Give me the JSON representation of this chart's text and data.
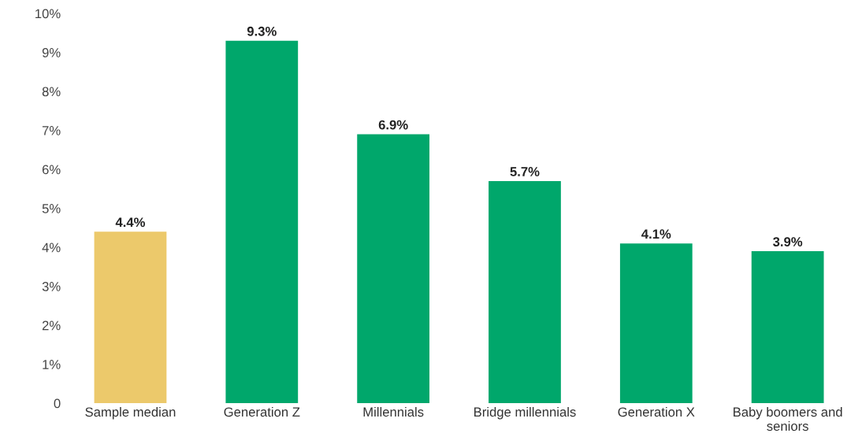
{
  "chart_data": {
    "type": "bar",
    "categories": [
      "Sample median",
      "Generation Z",
      "Millennials",
      "Bridge millennials",
      "Generation X",
      "Baby boomers and\nseniors"
    ],
    "values": [
      4.4,
      9.3,
      6.9,
      5.7,
      4.1,
      3.9
    ],
    "colors": [
      "#ecc96b",
      "#00a76b",
      "#00a76b",
      "#00a76b",
      "#00a76b",
      "#00a76b"
    ],
    "value_labels": [
      "4.4%",
      "9.3%",
      "6.9%",
      "5.7%",
      "4.1%",
      "3.9%"
    ],
    "ylim": [
      0,
      10
    ],
    "yticks": [
      {
        "value": 0,
        "label": "0"
      },
      {
        "value": 1,
        "label": "1%"
      },
      {
        "value": 2,
        "label": "2%"
      },
      {
        "value": 3,
        "label": "3%"
      },
      {
        "value": 4,
        "label": "4%"
      },
      {
        "value": 5,
        "label": "5%"
      },
      {
        "value": 6,
        "label": "6%"
      },
      {
        "value": 7,
        "label": "7%"
      },
      {
        "value": 8,
        "label": "8%"
      },
      {
        "value": 9,
        "label": "9%"
      },
      {
        "value": 10,
        "label": "10%"
      }
    ],
    "grid": false,
    "legend": false
  }
}
